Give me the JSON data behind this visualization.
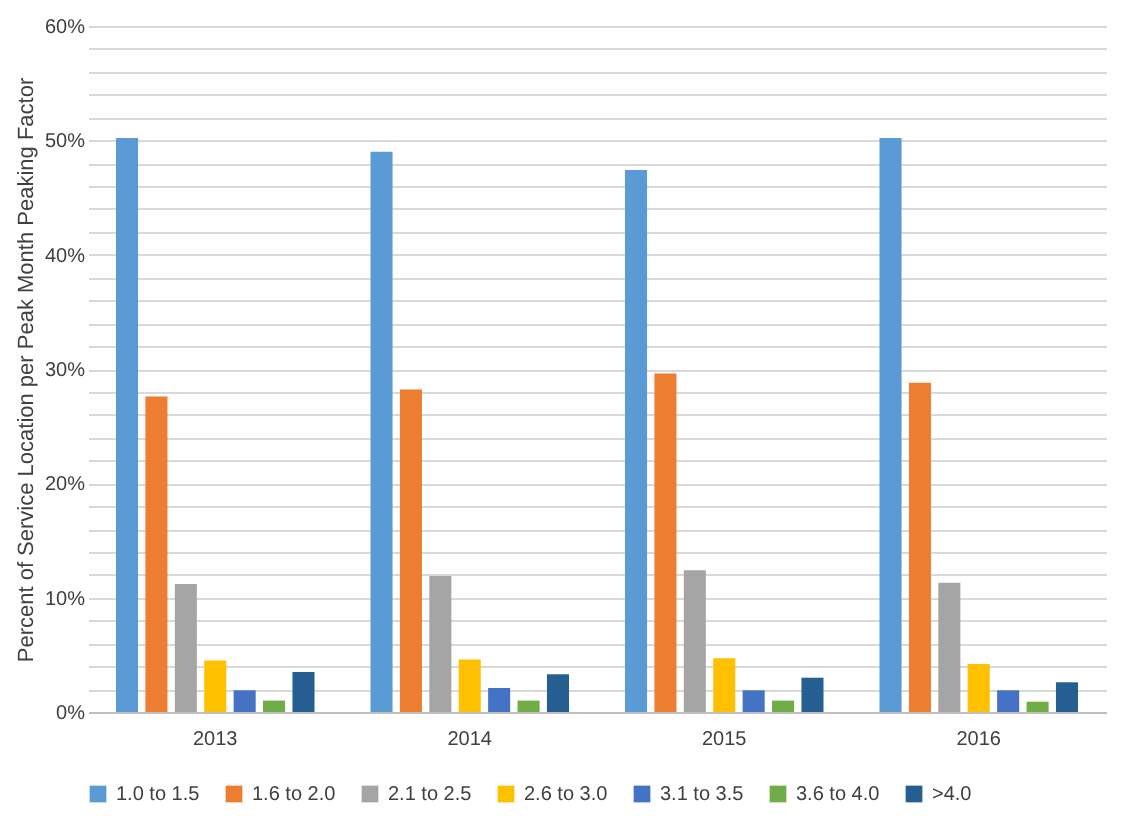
{
  "chart_data": {
    "type": "bar",
    "ylabel": "Percent of Service Location per Peak Month Peaking Factor",
    "categories": [
      "2013",
      "2014",
      "2015",
      "2016"
    ],
    "series": [
      {
        "name": "1.0 to 1.5",
        "color": "#5b9bd5",
        "values": [
          50.2,
          49.0,
          47.4,
          50.2
        ]
      },
      {
        "name": "1.6 to 2.0",
        "color": "#ed7d31",
        "values": [
          27.6,
          28.2,
          29.6,
          28.8
        ]
      },
      {
        "name": "2.1 to 2.5",
        "color": "#a5a5a5",
        "values": [
          11.2,
          11.9,
          12.4,
          11.3
        ]
      },
      {
        "name": "2.6 to 3.0",
        "color": "#ffc000",
        "values": [
          4.5,
          4.6,
          4.7,
          4.2
        ]
      },
      {
        "name": "3.1 to 3.5",
        "color": "#4472c4",
        "values": [
          1.9,
          2.1,
          1.9,
          1.9
        ]
      },
      {
        "name": "3.6 to 4.0",
        "color": "#70ad47",
        "values": [
          1.0,
          1.0,
          1.0,
          0.9
        ]
      },
      {
        "name": ">4.0",
        "color": "#255e91",
        "values": [
          3.5,
          3.3,
          3.0,
          2.6
        ]
      }
    ],
    "ylim": [
      0,
      60
    ],
    "yticks": [
      {
        "value": 0,
        "label": "0%"
      },
      {
        "value": 2,
        "label": null
      },
      {
        "value": 4,
        "label": null
      },
      {
        "value": 6,
        "label": null
      },
      {
        "value": 8,
        "label": null
      },
      {
        "value": 10,
        "label": "10%"
      },
      {
        "value": 12,
        "label": null
      },
      {
        "value": 14,
        "label": null
      },
      {
        "value": 16,
        "label": null
      },
      {
        "value": 18,
        "label": null
      },
      {
        "value": 20,
        "label": "20%"
      },
      {
        "value": 22,
        "label": null
      },
      {
        "value": 24,
        "label": null
      },
      {
        "value": 26,
        "label": null
      },
      {
        "value": 28,
        "label": null
      },
      {
        "value": 30,
        "label": "30%"
      },
      {
        "value": 32,
        "label": null
      },
      {
        "value": 34,
        "label": null
      },
      {
        "value": 36,
        "label": null
      },
      {
        "value": 38,
        "label": null
      },
      {
        "value": 40,
        "label": "40%"
      },
      {
        "value": 42,
        "label": null
      },
      {
        "value": 44,
        "label": null
      },
      {
        "value": 46,
        "label": null
      },
      {
        "value": 48,
        "label": null
      },
      {
        "value": 50,
        "label": "50%"
      },
      {
        "value": 52,
        "label": null
      },
      {
        "value": 54,
        "label": null
      },
      {
        "value": 56,
        "label": null
      },
      {
        "value": 58,
        "label": null
      },
      {
        "value": 60,
        "label": "60%"
      }
    ],
    "grid": "y",
    "legend": "bottom"
  }
}
